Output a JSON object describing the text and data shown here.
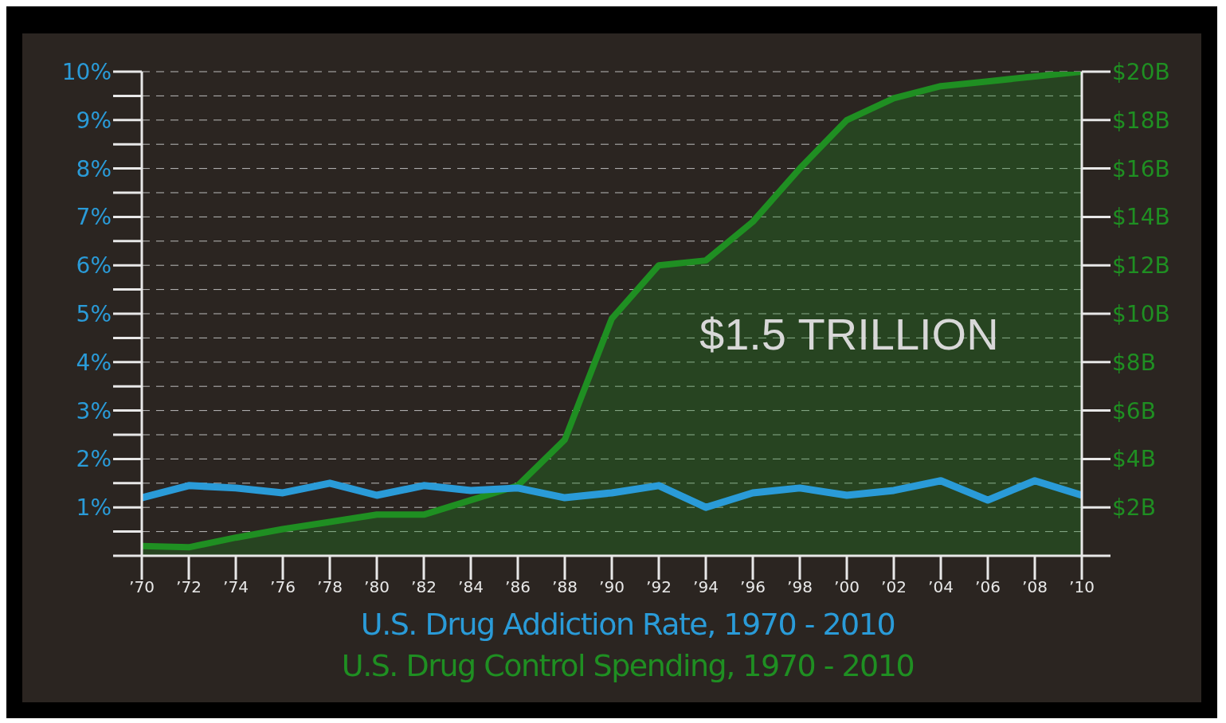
{
  "chart_data": {
    "type": "line",
    "x": [
      1970,
      1972,
      1974,
      1976,
      1978,
      1980,
      1982,
      1984,
      1986,
      1988,
      1990,
      1992,
      1994,
      1996,
      1998,
      2000,
      2002,
      2004,
      2006,
      2008,
      2010
    ],
    "series": [
      {
        "name": "U.S. Drug Addiction Rate, 1970 - 2010",
        "color": "#2a9bd8",
        "values": [
          1.2,
          1.45,
          1.4,
          1.3,
          1.5,
          1.25,
          1.45,
          1.35,
          1.4,
          1.2,
          1.3,
          1.45,
          1.0,
          1.3,
          1.4,
          1.25,
          1.35,
          1.55,
          1.15,
          1.55,
          1.25
        ]
      },
      {
        "name": "U.S. Drug Control Spending, 1970 - 2010",
        "type": "area",
        "axis": "y2",
        "color": "#1f8f22",
        "values": [
          0.4,
          0.35,
          0.75,
          1.1,
          1.4,
          1.7,
          1.7,
          2.3,
          2.9,
          4.8,
          9.8,
          12.0,
          12.2,
          13.8,
          16.0,
          18.0,
          18.9,
          19.4,
          19.6,
          19.8,
          20.0
        ]
      }
    ],
    "xlim": [
      1970,
      2010
    ],
    "xticks": [
      {
        "value": 1970,
        "label": "’70"
      },
      {
        "value": 1972,
        "label": "’72"
      },
      {
        "value": 1974,
        "label": "’74"
      },
      {
        "value": 1976,
        "label": "’76"
      },
      {
        "value": 1978,
        "label": "’78"
      },
      {
        "value": 1980,
        "label": "’80"
      },
      {
        "value": 1982,
        "label": "’82"
      },
      {
        "value": 1984,
        "label": "’84"
      },
      {
        "value": 1986,
        "label": "’86"
      },
      {
        "value": 1988,
        "label": "’88"
      },
      {
        "value": 1990,
        "label": "’90"
      },
      {
        "value": 1992,
        "label": "’92"
      },
      {
        "value": 1994,
        "label": "’94"
      },
      {
        "value": 1996,
        "label": "’96"
      },
      {
        "value": 1998,
        "label": "’98"
      },
      {
        "value": 2000,
        "label": "’00"
      },
      {
        "value": 2002,
        "label": "’02"
      },
      {
        "value": 2004,
        "label": "’04"
      },
      {
        "value": 2006,
        "label": "’06"
      },
      {
        "value": 2008,
        "label": "’08"
      },
      {
        "value": 2010,
        "label": "’10"
      }
    ],
    "ylim": [
      0,
      10
    ],
    "yticks": [
      {
        "value": 0,
        "label": null
      },
      {
        "value": 0.5,
        "label": null
      },
      {
        "value": 1,
        "label": "1%"
      },
      {
        "value": 1.5,
        "label": null
      },
      {
        "value": 2,
        "label": "2%"
      },
      {
        "value": 2.5,
        "label": null
      },
      {
        "value": 3,
        "label": "3%"
      },
      {
        "value": 3.5,
        "label": null
      },
      {
        "value": 4,
        "label": "4%"
      },
      {
        "value": 4.5,
        "label": null
      },
      {
        "value": 5,
        "label": "5%"
      },
      {
        "value": 5.5,
        "label": null
      },
      {
        "value": 6,
        "label": "6%"
      },
      {
        "value": 6.5,
        "label": null
      },
      {
        "value": 7,
        "label": "7%"
      },
      {
        "value": 7.5,
        "label": null
      },
      {
        "value": 8,
        "label": "8%"
      },
      {
        "value": 8.5,
        "label": null
      },
      {
        "value": 9,
        "label": "9%"
      },
      {
        "value": 9.5,
        "label": null
      },
      {
        "value": 10,
        "label": "10%"
      }
    ],
    "y2lim": [
      0,
      20
    ],
    "y2ticks": [
      {
        "value": 0,
        "label": null
      },
      {
        "value": 2,
        "label": "$2B"
      },
      {
        "value": 4,
        "label": "$4B"
      },
      {
        "value": 6,
        "label": "$6B"
      },
      {
        "value": 8,
        "label": "$8B"
      },
      {
        "value": 10,
        "label": "$10B"
      },
      {
        "value": 12,
        "label": "$12B"
      },
      {
        "value": 14,
        "label": "$14B"
      },
      {
        "value": 16,
        "label": "$16B"
      },
      {
        "value": 18,
        "label": "$18B"
      },
      {
        "value": 20,
        "label": "$20B"
      }
    ],
    "grid": "y",
    "line_style": "solid",
    "marker": "none",
    "legend": "bottom",
    "annotations": [
      "$1.5 TRILLION"
    ]
  }
}
